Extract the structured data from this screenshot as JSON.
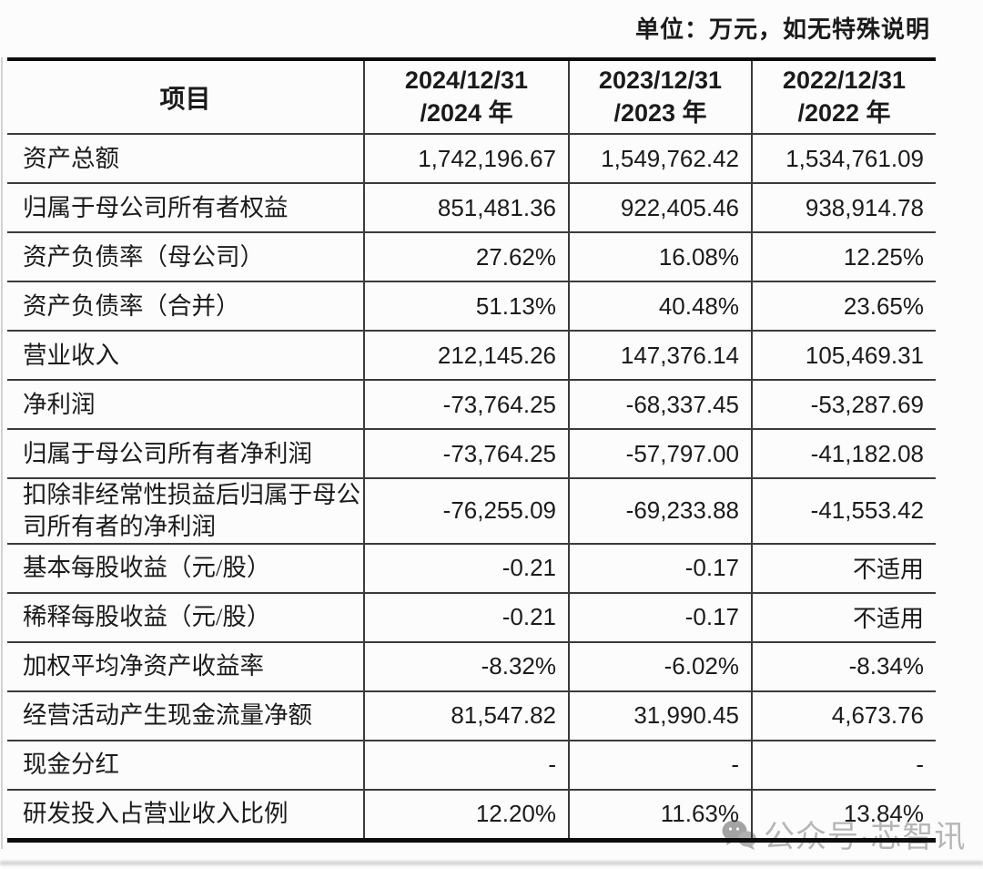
{
  "unit_note": "单位：万元，如无特殊说明",
  "table": {
    "item_header": "项目",
    "columns": [
      {
        "line1": "2024/12/31",
        "line2": "/2024 年"
      },
      {
        "line1": "2023/12/31",
        "line2": "/2023 年"
      },
      {
        "line1": "2022/12/31",
        "line2": "/2022 年"
      }
    ],
    "rows": [
      {
        "label": "资产总额",
        "values": [
          "1,742,196.67",
          "1,549,762.42",
          "1,534,761.09"
        ]
      },
      {
        "label": "归属于母公司所有者权益",
        "values": [
          "851,481.36",
          "922,405.46",
          "938,914.78"
        ]
      },
      {
        "label": "资产负债率（母公司）",
        "values": [
          "27.62%",
          "16.08%",
          "12.25%"
        ]
      },
      {
        "label": "资产负债率（合并）",
        "values": [
          "51.13%",
          "40.48%",
          "23.65%"
        ]
      },
      {
        "label": "营业收入",
        "values": [
          "212,145.26",
          "147,376.14",
          "105,469.31"
        ]
      },
      {
        "label": "净利润",
        "values": [
          "-73,764.25",
          "-68,337.45",
          "-53,287.69"
        ]
      },
      {
        "label": "归属于母公司所有者净利润",
        "values": [
          "-73,764.25",
          "-57,797.00",
          "-41,182.08"
        ]
      },
      {
        "label": "扣除非经常性损益后归属于母公司所有者的净利润",
        "values": [
          "-76,255.09",
          "-69,233.88",
          "-41,553.42"
        ]
      },
      {
        "label": "基本每股收益（元/股）",
        "values": [
          "-0.21",
          "-0.17",
          "不适用"
        ]
      },
      {
        "label": "稀释每股收益（元/股）",
        "values": [
          "-0.21",
          "-0.17",
          "不适用"
        ]
      },
      {
        "label": "加权平均净资产收益率",
        "values": [
          "-8.32%",
          "-6.02%",
          "-8.34%"
        ]
      },
      {
        "label": "经营活动产生现金流量净额",
        "values": [
          "81,547.82",
          "31,990.45",
          "4,673.76"
        ]
      },
      {
        "label": "现金分红",
        "values": [
          "-",
          "-",
          "-"
        ]
      },
      {
        "label": "研发投入占营业收入比例",
        "values": [
          "12.20%",
          "11.63%",
          "13.84%"
        ]
      }
    ]
  },
  "watermark": {
    "text": "公众号·芯智讯",
    "icon": "wechat-icon",
    "color": "#b6b6b6"
  }
}
